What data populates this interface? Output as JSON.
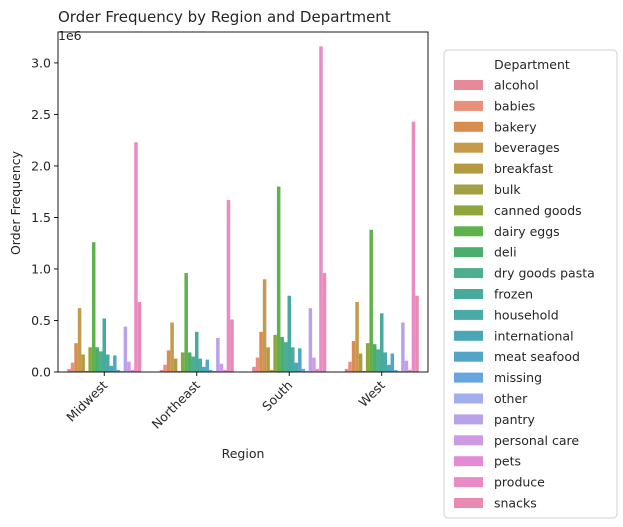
{
  "chart_data": {
    "type": "bar",
    "title": "Order Frequency by Region and Department",
    "xlabel": "Region",
    "ylabel": "Order Frequency",
    "offset_label": "1e6",
    "categories": [
      "Midwest",
      "Northeast",
      "South",
      "West"
    ],
    "ylim": [
      0,
      3.3
    ],
    "yticks": [
      0.0,
      0.5,
      1.0,
      1.5,
      2.0,
      2.5,
      3.0
    ],
    "ytick_labels": [
      "0.0",
      "0.5",
      "1.0",
      "1.5",
      "2.0",
      "2.5",
      "3.0"
    ],
    "grid": false,
    "legend": {
      "title": "Department",
      "placement": "outside-right"
    },
    "series": [
      {
        "name": "alcohol",
        "color": "#e58a99",
        "values": [
          0.03,
          0.02,
          0.05,
          0.03
        ]
      },
      {
        "name": "babies",
        "color": "#e8907b",
        "values": [
          0.09,
          0.07,
          0.14,
          0.1
        ]
      },
      {
        "name": "bakery",
        "color": "#d98c4f",
        "values": [
          0.28,
          0.21,
          0.39,
          0.3
        ]
      },
      {
        "name": "beverages",
        "color": "#c49a4c",
        "values": [
          0.62,
          0.48,
          0.9,
          0.68
        ]
      },
      {
        "name": "breakfast",
        "color": "#b39a42",
        "values": [
          0.17,
          0.13,
          0.24,
          0.18
        ]
      },
      {
        "name": "bulk",
        "color": "#a29f46",
        "values": [
          0.01,
          0.01,
          0.02,
          0.01
        ]
      },
      {
        "name": "canned goods",
        "color": "#8fa63f",
        "values": [
          0.24,
          0.19,
          0.36,
          0.28
        ]
      },
      {
        "name": "dairy eggs",
        "color": "#5fb14e",
        "values": [
          1.26,
          0.96,
          1.8,
          1.38
        ]
      },
      {
        "name": "deli",
        "color": "#4bae6e",
        "values": [
          0.24,
          0.19,
          0.34,
          0.27
        ]
      },
      {
        "name": "dry goods pasta",
        "color": "#4fae8f",
        "values": [
          0.2,
          0.15,
          0.29,
          0.22
        ]
      },
      {
        "name": "frozen",
        "color": "#47aa9c",
        "values": [
          0.52,
          0.39,
          0.74,
          0.57
        ]
      },
      {
        "name": "household",
        "color": "#4aaaa8",
        "values": [
          0.17,
          0.13,
          0.24,
          0.19
        ]
      },
      {
        "name": "international",
        "color": "#4aa7b5",
        "values": [
          0.06,
          0.05,
          0.09,
          0.07
        ]
      },
      {
        "name": "meat seafood",
        "color": "#52a5c9",
        "values": [
          0.16,
          0.12,
          0.23,
          0.18
        ]
      },
      {
        "name": "missing",
        "color": "#67a4e0",
        "values": [
          0.02,
          0.02,
          0.03,
          0.02
        ]
      },
      {
        "name": "other",
        "color": "#a2aeec",
        "values": [
          0.01,
          0.01,
          0.01,
          0.01
        ]
      },
      {
        "name": "pantry",
        "color": "#b9a3e8",
        "values": [
          0.44,
          0.33,
          0.62,
          0.48
        ]
      },
      {
        "name": "personal care",
        "color": "#cf9ae4",
        "values": [
          0.1,
          0.08,
          0.14,
          0.11
        ]
      },
      {
        "name": "pets",
        "color": "#e48bd8",
        "values": [
          0.02,
          0.02,
          0.03,
          0.02
        ]
      },
      {
        "name": "produce",
        "color": "#e98cc5",
        "values": [
          2.23,
          1.67,
          3.16,
          2.43
        ]
      },
      {
        "name": "snacks",
        "color": "#ea8ab0",
        "values": [
          0.68,
          0.51,
          0.96,
          0.74
        ]
      }
    ]
  }
}
